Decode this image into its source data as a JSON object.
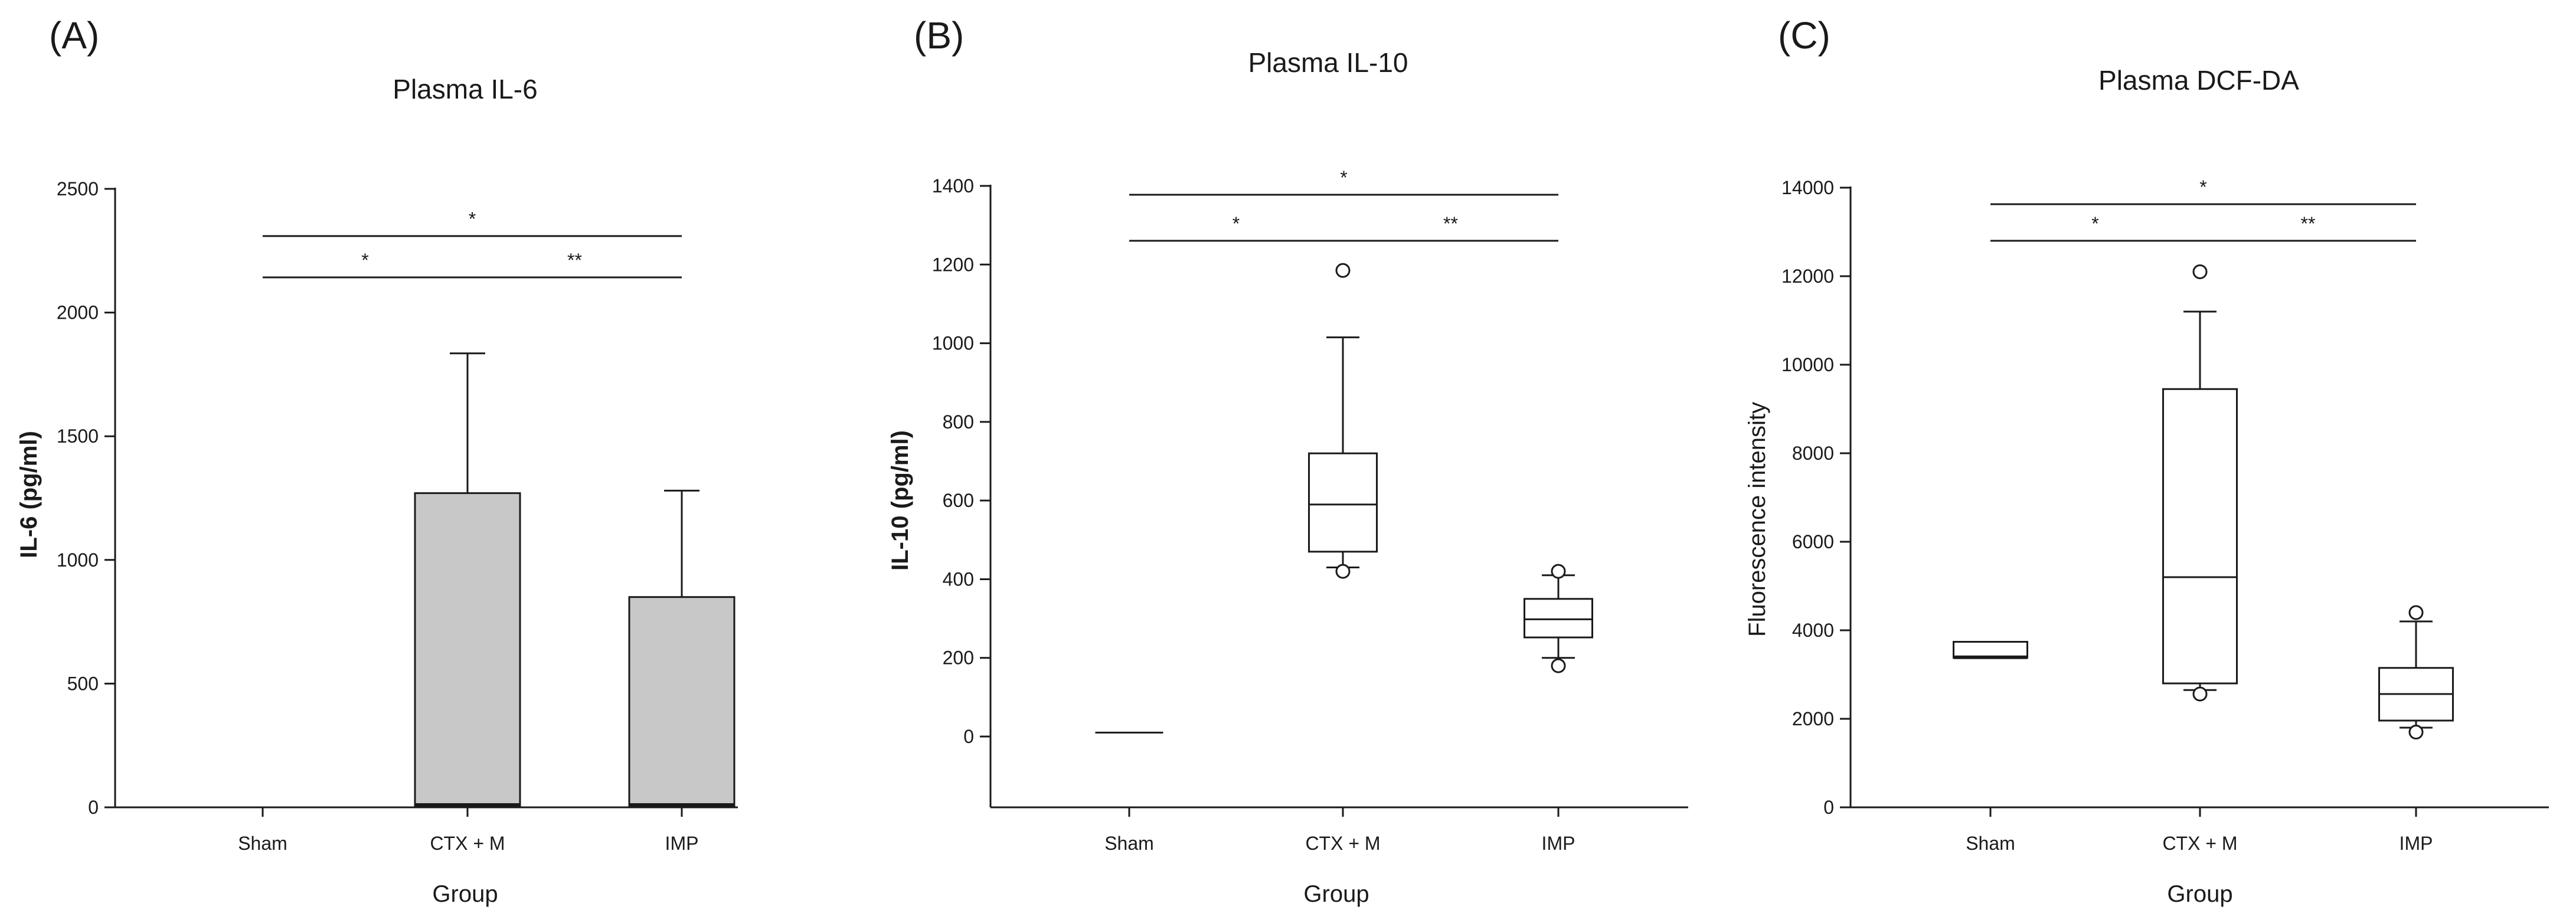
{
  "chart_data": [
    {
      "type": "bar",
      "panel": "(A)",
      "title": "Plasma IL-6",
      "xlabel": "Group",
      "ylabel": "IL-6 (pg/ml)",
      "categories": [
        "Sham",
        "CTX + M",
        "IMP"
      ],
      "values": [
        0,
        1270,
        850
      ],
      "errors_upper": [
        0,
        1835,
        1280
      ],
      "ylim": [
        0,
        2500
      ],
      "yticks": [
        0,
        500,
        1000,
        1500,
        2000,
        2500
      ],
      "bar_color": "#c8c8c8",
      "significance": [
        {
          "from": 0,
          "to": 2,
          "label": "*",
          "level": 2
        },
        {
          "from": 0,
          "to": 1,
          "label": "*",
          "level": 1
        },
        {
          "from": 1,
          "to": 2,
          "label": "**",
          "level": 1
        }
      ]
    },
    {
      "type": "box",
      "panel": "(B)",
      "title": "Plasma IL-10",
      "xlabel": "Group",
      "ylabel": "IL-10 (pg/ml)",
      "categories": [
        "Sham",
        "CTX + M",
        "IMP"
      ],
      "boxes": [
        {
          "whisker_low": 10,
          "q1": 10,
          "median": 10,
          "q3": 10,
          "whisker_high": 10,
          "outliers": []
        },
        {
          "whisker_low": 430,
          "q1": 470,
          "median": 590,
          "q3": 720,
          "whisker_high": 1015,
          "outliers": [
            420,
            1185
          ]
        },
        {
          "whisker_low": 200,
          "q1": 252,
          "median": 298,
          "q3": 350,
          "whisker_high": 410,
          "outliers": [
            180,
            420
          ]
        }
      ],
      "ylim": [
        -180,
        1400
      ],
      "yticks": [
        0,
        200,
        400,
        600,
        800,
        1000,
        1200,
        1400
      ],
      "significance": [
        {
          "from": 0,
          "to": 2,
          "label": "*",
          "level": 2
        },
        {
          "from": 0,
          "to": 1,
          "label": "*",
          "level": 1
        },
        {
          "from": 1,
          "to": 2,
          "label": "**",
          "level": 1
        }
      ]
    },
    {
      "type": "box",
      "panel": "(C)",
      "title": "Plasma DCF-DA",
      "xlabel": "Group",
      "ylabel": "Fluorescence intensity",
      "categories": [
        "Sham",
        "CTX + M",
        "IMP"
      ],
      "boxes": [
        {
          "whisker_low": 3380,
          "q1": 3380,
          "median": 3390,
          "q3": 3740,
          "whisker_high": 3740,
          "outliers": []
        },
        {
          "whisker_low": 2650,
          "q1": 2800,
          "median": 5200,
          "q3": 9450,
          "whisker_high": 11200,
          "outliers": [
            2560,
            12100
          ]
        },
        {
          "whisker_low": 1800,
          "q1": 1960,
          "median": 2560,
          "q3": 3150,
          "whisker_high": 4200,
          "outliers": [
            1700,
            4400
          ]
        }
      ],
      "ylim": [
        0,
        14000
      ],
      "yticks": [
        0,
        2000,
        4000,
        6000,
        8000,
        10000,
        12000,
        14000
      ],
      "significance": [
        {
          "from": 0,
          "to": 2,
          "label": "*",
          "level": 2
        },
        {
          "from": 0,
          "to": 1,
          "label": "*",
          "level": 1
        },
        {
          "from": 1,
          "to": 2,
          "label": "**",
          "level": 1
        }
      ]
    }
  ]
}
